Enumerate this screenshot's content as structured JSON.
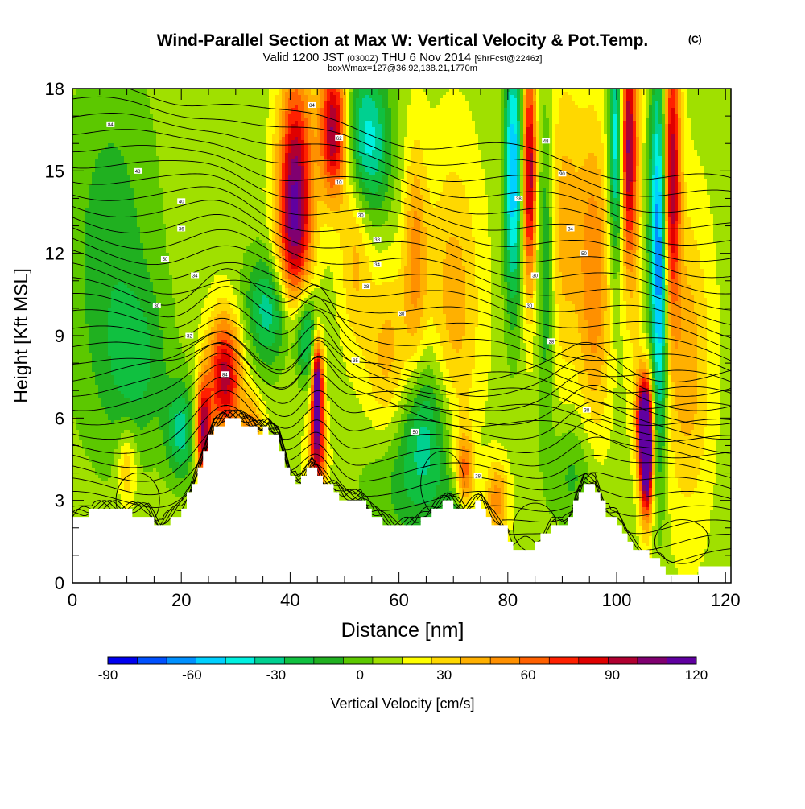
{
  "title": {
    "main": "Wind-Parallel Section at Max W: Vertical Velocity & Pot.Temp.",
    "mark": "(C)",
    "valid_prefix": "Valid 1200 JST",
    "valid_utc": "(0300Z)",
    "valid_date": "THU 6 Nov 2014",
    "forecast": "[9hrFcst@2246z]",
    "boxline": "boxWmax=127@36.92,138.21,1770m"
  },
  "chart_data": {
    "type": "heatmap",
    "xlabel": "Distance [nm]",
    "ylabel": "Height [Kft MSL]",
    "xlim": [
      0,
      121
    ],
    "ylim": [
      0,
      18
    ],
    "x_ticks": [
      0,
      20,
      40,
      60,
      80,
      100,
      120
    ],
    "x_tick_labels": [
      "0",
      "20",
      "40",
      "60",
      "80",
      "100",
      "120"
    ],
    "y_ticks": [
      0,
      3,
      6,
      9,
      12,
      15,
      18
    ],
    "y_tick_labels": [
      "0",
      "3",
      "6",
      "9",
      "12",
      "15",
      "18"
    ],
    "colorbar": {
      "label": "Vertical Velocity [cm/s]",
      "min": -90,
      "max": 120,
      "step": 10,
      "tick_values": [
        -90,
        -60,
        -30,
        0,
        30,
        60,
        90,
        120
      ],
      "tick_labels": [
        "-90",
        "-60",
        "-30",
        "0",
        "30",
        "60",
        "90",
        "120"
      ],
      "colors": [
        "#0000f0",
        "#0050ff",
        "#0090ff",
        "#00d0ff",
        "#00f0e0",
        "#00d090",
        "#10c040",
        "#20b020",
        "#5cc800",
        "#a0e000",
        "#ffff00",
        "#ffd800",
        "#ffb000",
        "#ff9000",
        "#ff6000",
        "#ff2000",
        "#e00000",
        "#b00030",
        "#800070",
        "#6000a0"
      ]
    },
    "vertical_velocity_features": [
      {
        "x": 10,
        "z": 4.2,
        "w": 30,
        "sx": 1.2,
        "sz": 1.0
      },
      {
        "x": 24,
        "z": 5.5,
        "w": 85,
        "sx": 1.0,
        "sz": 1.3
      },
      {
        "x": 20,
        "z": 5.5,
        "w": -40,
        "sx": 2.0,
        "sz": 1.2
      },
      {
        "x": 28,
        "z": 7.5,
        "w": 80,
        "sx": 2.2,
        "sz": 1.6
      },
      {
        "x": 33,
        "z": 5.4,
        "w": 40,
        "sx": 1.5,
        "sz": 1.0
      },
      {
        "x": 41,
        "z": 14.5,
        "w": 85,
        "sx": 2.2,
        "sz": 3.0
      },
      {
        "x": 40,
        "z": 11.5,
        "w": 35,
        "sx": 2.5,
        "sz": 2.0
      },
      {
        "x": 48,
        "z": 16.5,
        "w": 90,
        "sx": 1.8,
        "sz": 1.8
      },
      {
        "x": 45,
        "z": 7.0,
        "w": 120,
        "sx": 0.7,
        "sz": 1.3
      },
      {
        "x": 45,
        "z": 4.5,
        "w": 60,
        "sx": 1.2,
        "sz": 1.2
      },
      {
        "x": 37,
        "z": 10.0,
        "w": -50,
        "sx": 3.5,
        "sz": 1.5
      },
      {
        "x": 43,
        "z": 9.0,
        "w": -45,
        "sx": 1.5,
        "sz": 1.2
      },
      {
        "x": 54,
        "z": 16.0,
        "w": -55,
        "sx": 3.0,
        "sz": 2.0
      },
      {
        "x": 52,
        "z": 12.5,
        "w": 30,
        "sx": 2.0,
        "sz": 2.5
      },
      {
        "x": 58,
        "z": 8.0,
        "w": 30,
        "sx": 3.0,
        "sz": 2.5
      },
      {
        "x": 63,
        "z": 12.0,
        "w": 35,
        "sx": 1.5,
        "sz": 3.0
      },
      {
        "x": 65,
        "z": 6.0,
        "w": -30,
        "sx": 3.0,
        "sz": 2.0
      },
      {
        "x": 70,
        "z": 10.0,
        "w": 30,
        "sx": 3.5,
        "sz": 4.0
      },
      {
        "x": 72,
        "z": 4.0,
        "w": 50,
        "sx": 1.2,
        "sz": 1.0
      },
      {
        "x": 78,
        "z": 3.0,
        "w": 40,
        "sx": 1.5,
        "sz": 1.0
      },
      {
        "x": 70,
        "z": 2.5,
        "w": -20,
        "sx": 2.0,
        "sz": 1.0
      },
      {
        "x": 81,
        "z": 15.0,
        "w": -65,
        "sx": 1.2,
        "sz": 3.5
      },
      {
        "x": 84,
        "z": 15.0,
        "w": 80,
        "sx": 0.9,
        "sz": 3.0
      },
      {
        "x": 87,
        "z": 12.0,
        "w": -40,
        "sx": 1.2,
        "sz": 4.0
      },
      {
        "x": 90,
        "z": 13.0,
        "w": 30,
        "sx": 3.0,
        "sz": 4.0
      },
      {
        "x": 96,
        "z": 11.0,
        "w": 40,
        "sx": 2.0,
        "sz": 4.0
      },
      {
        "x": 100,
        "z": 16.0,
        "w": -60,
        "sx": 1.0,
        "sz": 3.0
      },
      {
        "x": 102,
        "z": 16.0,
        "w": 80,
        "sx": 1.0,
        "sz": 3.0
      },
      {
        "x": 104,
        "z": 14.0,
        "w": 30,
        "sx": 1.5,
        "sz": 5.0
      },
      {
        "x": 106,
        "z": 13.0,
        "w": -30,
        "sx": 1.5,
        "sz": 4.0
      },
      {
        "x": 105.5,
        "z": 4.5,
        "w": 120,
        "sx": 0.8,
        "sz": 1.5
      },
      {
        "x": 105,
        "z": 6.0,
        "w": 80,
        "sx": 1.0,
        "sz": 1.2
      },
      {
        "x": 108,
        "z": 12.0,
        "w": -75,
        "sx": 1.0,
        "sz": 5.0
      },
      {
        "x": 110,
        "z": 15.0,
        "w": 85,
        "sx": 1.2,
        "sz": 3.5
      },
      {
        "x": 113,
        "z": 8.0,
        "w": 30,
        "sx": 3.0,
        "sz": 4.0
      },
      {
        "x": 7,
        "z": 12.0,
        "w": -22,
        "sx": 6.0,
        "sz": 5.0
      },
      {
        "x": 12,
        "z": 8.0,
        "w": -22,
        "sx": 4.0,
        "sz": 2.0
      },
      {
        "x": 62,
        "z": 4.0,
        "w": -25,
        "sx": 6.0,
        "sz": 2.0
      },
      {
        "x": 92,
        "z": 4.0,
        "w": -20,
        "sx": 3.0,
        "sz": 1.5
      }
    ],
    "terrain": [
      {
        "x": 0,
        "z": 2.2
      },
      {
        "x": 4,
        "z": 2.6
      },
      {
        "x": 8,
        "z": 2.6
      },
      {
        "x": 14,
        "z": 2.5
      },
      {
        "x": 16,
        "z": 2.0
      },
      {
        "x": 18,
        "z": 2.3
      },
      {
        "x": 20,
        "z": 2.6
      },
      {
        "x": 22,
        "z": 3.4
      },
      {
        "x": 24,
        "z": 4.5
      },
      {
        "x": 26,
        "z": 5.6
      },
      {
        "x": 28,
        "z": 5.9
      },
      {
        "x": 31,
        "z": 5.9
      },
      {
        "x": 34,
        "z": 5.5
      },
      {
        "x": 36,
        "z": 5.6
      },
      {
        "x": 38,
        "z": 5.2
      },
      {
        "x": 40,
        "z": 3.8
      },
      {
        "x": 42,
        "z": 3.6
      },
      {
        "x": 44,
        "z": 4.2
      },
      {
        "x": 46,
        "z": 3.6
      },
      {
        "x": 48,
        "z": 3.4
      },
      {
        "x": 50,
        "z": 3.0
      },
      {
        "x": 53,
        "z": 3.0
      },
      {
        "x": 55,
        "z": 2.5
      },
      {
        "x": 57,
        "z": 2.2
      },
      {
        "x": 59,
        "z": 2.0
      },
      {
        "x": 63,
        "z": 2.0
      },
      {
        "x": 66,
        "z": 2.6
      },
      {
        "x": 69,
        "z": 2.9
      },
      {
        "x": 72,
        "z": 2.6
      },
      {
        "x": 75,
        "z": 2.9
      },
      {
        "x": 77,
        "z": 2.3
      },
      {
        "x": 80,
        "z": 1.9
      },
      {
        "x": 81,
        "z": 1.3
      },
      {
        "x": 85,
        "z": 1.3
      },
      {
        "x": 88,
        "z": 2.0
      },
      {
        "x": 90,
        "z": 2.0
      },
      {
        "x": 92,
        "z": 2.6
      },
      {
        "x": 94,
        "z": 3.6
      },
      {
        "x": 96,
        "z": 3.6
      },
      {
        "x": 98,
        "z": 2.6
      },
      {
        "x": 100,
        "z": 2.3
      },
      {
        "x": 102,
        "z": 1.5
      },
      {
        "x": 104,
        "z": 1.2
      },
      {
        "x": 106,
        "z": 1.0
      },
      {
        "x": 108,
        "z": 0.7
      },
      {
        "x": 110,
        "z": 0.3
      },
      {
        "x": 114,
        "z": 0.3
      },
      {
        "x": 116,
        "z": 0.7
      },
      {
        "x": 119,
        "z": 0.7
      },
      {
        "x": 120,
        "z": 0.3
      },
      {
        "x": 121,
        "z": 1.0
      }
    ],
    "contour_labels": [
      {
        "text": "84",
        "x": 44,
        "z": 17.4
      },
      {
        "text": "84",
        "x": 7,
        "z": 16.7
      },
      {
        "text": "48",
        "x": 12,
        "z": 15.0
      },
      {
        "text": "40",
        "x": 20,
        "z": 13.9
      },
      {
        "text": "36",
        "x": 20,
        "z": 12.9
      },
      {
        "text": "50",
        "x": 17,
        "z": 11.8
      },
      {
        "text": "34",
        "x": 22.5,
        "z": 11.2
      },
      {
        "text": "30",
        "x": 15.5,
        "z": 10.1
      },
      {
        "text": "32",
        "x": 21.5,
        "z": 9.0
      },
      {
        "text": "62",
        "x": 49,
        "z": 16.2
      },
      {
        "text": "10",
        "x": 49,
        "z": 14.6
      },
      {
        "text": "30",
        "x": 53,
        "z": 13.4
      },
      {
        "text": "38",
        "x": 56,
        "z": 12.5
      },
      {
        "text": "34",
        "x": 56,
        "z": 11.6
      },
      {
        "text": "38",
        "x": 54,
        "z": 10.8
      },
      {
        "text": "30",
        "x": 60.5,
        "z": 9.8
      },
      {
        "text": "35",
        "x": 52,
        "z": 8.1
      },
      {
        "text": "50",
        "x": 63,
        "z": 5.5
      },
      {
        "text": "48",
        "x": 87,
        "z": 16.1
      },
      {
        "text": "38",
        "x": 82,
        "z": 14.0
      },
      {
        "text": "90",
        "x": 90,
        "z": 14.9
      },
      {
        "text": "34",
        "x": 91.5,
        "z": 12.9
      },
      {
        "text": "50",
        "x": 94,
        "z": 12.0
      },
      {
        "text": "30",
        "x": 85,
        "z": 11.2
      },
      {
        "text": "30",
        "x": 84,
        "z": 10.1
      },
      {
        "text": "28",
        "x": 88,
        "z": 8.8
      },
      {
        "text": "38",
        "x": 94.5,
        "z": 6.3
      },
      {
        "text": "84",
        "x": 28,
        "z": 7.6
      },
      {
        "text": "28",
        "x": 74.5,
        "z": 3.9
      }
    ]
  }
}
